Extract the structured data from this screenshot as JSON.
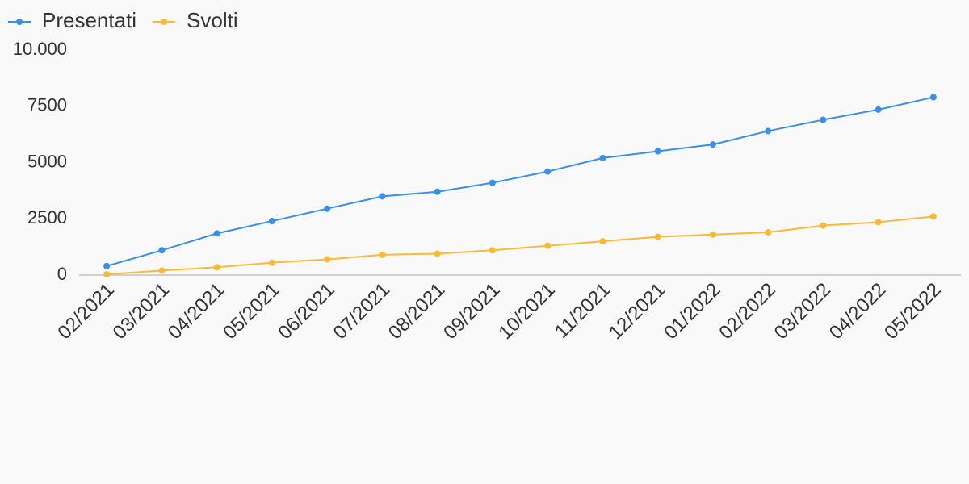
{
  "chart_data": {
    "type": "line",
    "categories": [
      "02/2021",
      "03/2021",
      "04/2021",
      "05/2021",
      "06/2021",
      "07/2021",
      "08/2021",
      "09/2021",
      "10/2021",
      "11/2021",
      "12/2021",
      "01/2022",
      "02/2022",
      "03/2022",
      "04/2022",
      "05/2022"
    ],
    "series": [
      {
        "name": "Presentati",
        "color": "#3a8fe6",
        "values": [
          400,
          1100,
          1850,
          2400,
          2950,
          3500,
          3700,
          4100,
          4600,
          5200,
          5500,
          5800,
          6400,
          6900,
          7350,
          7900
        ]
      },
      {
        "name": "Svolti",
        "color": "#fbb937",
        "values": [
          30,
          200,
          350,
          550,
          700,
          900,
          950,
          1100,
          1300,
          1500,
          1700,
          1800,
          1900,
          2200,
          2350,
          2600
        ]
      }
    ],
    "ylim": [
      0,
      10000
    ],
    "yticks": [
      0,
      2500,
      5000,
      7500,
      {
        "value": 10000,
        "label": "10.000"
      }
    ],
    "grid": false,
    "legend": "top-left"
  }
}
